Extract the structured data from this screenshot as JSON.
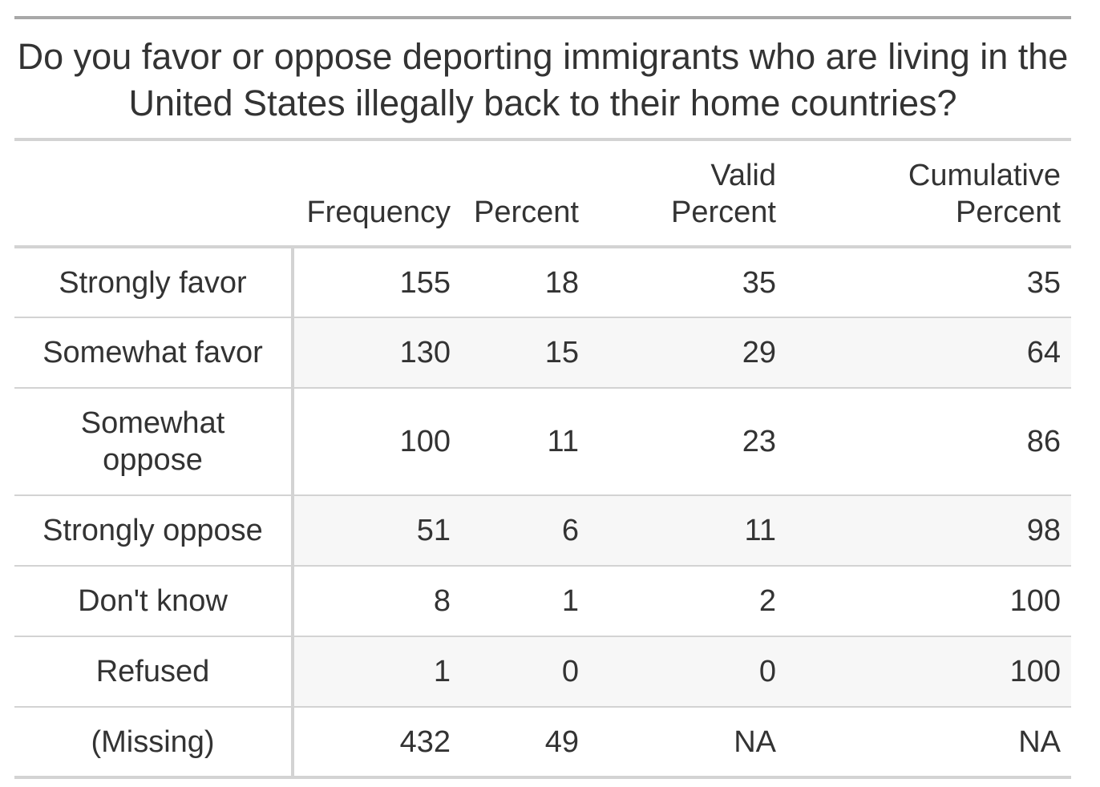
{
  "table": {
    "title": "Do you favor or oppose deporting immigrants who are living in the United States illegally back to their home countries?",
    "columns": [
      {
        "line1": "",
        "line2": ""
      },
      {
        "line1": "",
        "line2": "Frequency"
      },
      {
        "line1": "",
        "line2": "Percent"
      },
      {
        "line1": "Valid",
        "line2": "Percent"
      },
      {
        "line1": "Cumulative",
        "line2": "Percent"
      }
    ],
    "rows": [
      {
        "label": "Strongly favor",
        "frequency": "155",
        "percent": "18",
        "valid_percent": "35",
        "cumulative_percent": "35"
      },
      {
        "label": "Somewhat favor",
        "frequency": "130",
        "percent": "15",
        "valid_percent": "29",
        "cumulative_percent": "64"
      },
      {
        "label": "Somewhat oppose",
        "frequency": "100",
        "percent": "11",
        "valid_percent": "23",
        "cumulative_percent": "86"
      },
      {
        "label": "Strongly oppose",
        "frequency": "51",
        "percent": "6",
        "valid_percent": "11",
        "cumulative_percent": "98"
      },
      {
        "label": "Don't know",
        "frequency": "8",
        "percent": "1",
        "valid_percent": "2",
        "cumulative_percent": "100"
      },
      {
        "label": "Refused",
        "frequency": "1",
        "percent": "0",
        "valid_percent": "0",
        "cumulative_percent": "100"
      },
      {
        "label": "(Missing)",
        "frequency": "432",
        "percent": "49",
        "valid_percent": "NA",
        "cumulative_percent": "NA"
      }
    ]
  },
  "colors": {
    "text": "#333333",
    "rule_dark": "#a8a8a8",
    "rule_light": "#d3d3d3",
    "stripe": "#f7f7f7"
  }
}
